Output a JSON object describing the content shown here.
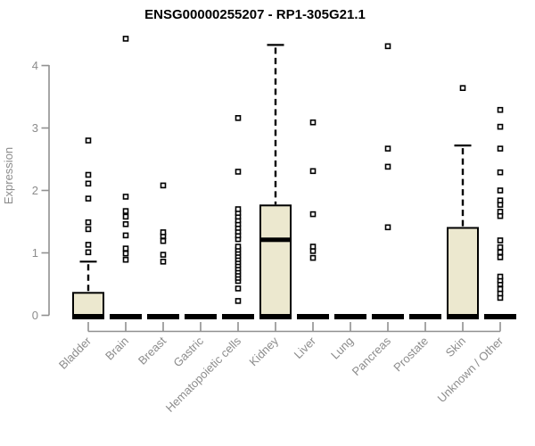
{
  "header": {
    "title": "ENSG00000255207 - RP1-305G21.1"
  },
  "chart_data": {
    "type": "boxplot",
    "title": "ENSG00000255207 - RP1-305G21.1",
    "xlabel": "",
    "ylabel": "Expression",
    "ylim": [
      0,
      4.45
    ],
    "yticks": [
      0,
      1,
      2,
      3,
      4
    ],
    "grid": false,
    "legend": "none",
    "categories": [
      "Bladder",
      "Brain",
      "Breast",
      "Gastric",
      "Hematopoietic cells",
      "Kidney",
      "Liver",
      "Lung",
      "Pancreas",
      "Prostate",
      "Skin",
      "Unknown / Other"
    ],
    "series": [
      {
        "name": "Bladder",
        "q1": 0,
        "median": 0,
        "q3": 0.36,
        "whisker_low": 0,
        "whisker_high": 0.86,
        "outliers": [
          1.01,
          1.13,
          1.38,
          1.49,
          1.87,
          2.11,
          2.25,
          2.8
        ]
      },
      {
        "name": "Brain",
        "q1": 0,
        "median": 0,
        "q3": 0,
        "whisker_low": 0,
        "whisker_high": 0,
        "outliers": [
          0.89,
          0.99,
          1.07,
          1.28,
          1.46,
          1.58,
          1.67,
          1.9,
          4.43
        ]
      },
      {
        "name": "Breast",
        "q1": 0,
        "median": 0,
        "q3": 0,
        "whisker_low": 0,
        "whisker_high": 0,
        "outliers": [
          0.86,
          0.97,
          1.19,
          1.27,
          1.33,
          2.08
        ]
      },
      {
        "name": "Gastric",
        "q1": 0,
        "median": 0,
        "q3": 0,
        "whisker_low": 0,
        "whisker_high": 0,
        "outliers": []
      },
      {
        "name": "Hematopoietic cells",
        "q1": 0,
        "median": 0,
        "q3": 0,
        "whisker_low": 0,
        "whisker_high": 0,
        "outliers": [
          0.23,
          0.43,
          0.55,
          0.6,
          0.65,
          0.7,
          0.75,
          0.8,
          0.85,
          0.9,
          0.95,
          1.0,
          1.05,
          1.1,
          1.22,
          1.28,
          1.34,
          1.4,
          1.46,
          1.52,
          1.58,
          1.64,
          1.7,
          2.3,
          3.16
        ]
      },
      {
        "name": "Kidney",
        "q1": 0,
        "median": 1.21,
        "q3": 1.76,
        "whisker_low": 0,
        "whisker_high": 4.33,
        "outliers": []
      },
      {
        "name": "Liver",
        "q1": 0,
        "median": 0,
        "q3": 0,
        "whisker_low": 0,
        "whisker_high": 0,
        "outliers": [
          0.92,
          1.03,
          1.1,
          1.62,
          2.31,
          3.09
        ]
      },
      {
        "name": "Lung",
        "q1": 0,
        "median": 0,
        "q3": 0,
        "whisker_low": 0,
        "whisker_high": 0,
        "outliers": []
      },
      {
        "name": "Pancreas",
        "q1": 0,
        "median": 0,
        "q3": 0,
        "whisker_low": 0,
        "whisker_high": 0,
        "outliers": [
          1.41,
          2.38,
          2.67,
          4.31
        ]
      },
      {
        "name": "Prostate",
        "q1": 0,
        "median": 0,
        "q3": 0,
        "whisker_low": 0,
        "whisker_high": 0,
        "outliers": []
      },
      {
        "name": "Skin",
        "q1": 0,
        "median": 0,
        "q3": 1.4,
        "whisker_low": 0,
        "whisker_high": 2.72,
        "outliers": [
          3.64
        ]
      },
      {
        "name": "Unknown / Other",
        "q1": 0,
        "median": 0,
        "q3": 0,
        "whisker_low": 0,
        "whisker_high": 0,
        "outliers": [
          0.28,
          0.35,
          0.42,
          0.5,
          0.56,
          0.62,
          0.93,
          1.01,
          1.09,
          1.2,
          1.59,
          1.66,
          1.77,
          1.84,
          2.0,
          2.29,
          2.67,
          3.02,
          3.29
        ]
      }
    ],
    "colors": {
      "box_fill": "#ECE8CF",
      "box_stroke": "#000000",
      "median": "#000000",
      "whisker": "#000000",
      "outlier_fill": "#FFFFFF",
      "outlier_stroke": "#000000",
      "axis": "#909090",
      "tick_label": "#8C8C8C",
      "title": "#000000",
      "background": "#FFFFFF"
    }
  }
}
